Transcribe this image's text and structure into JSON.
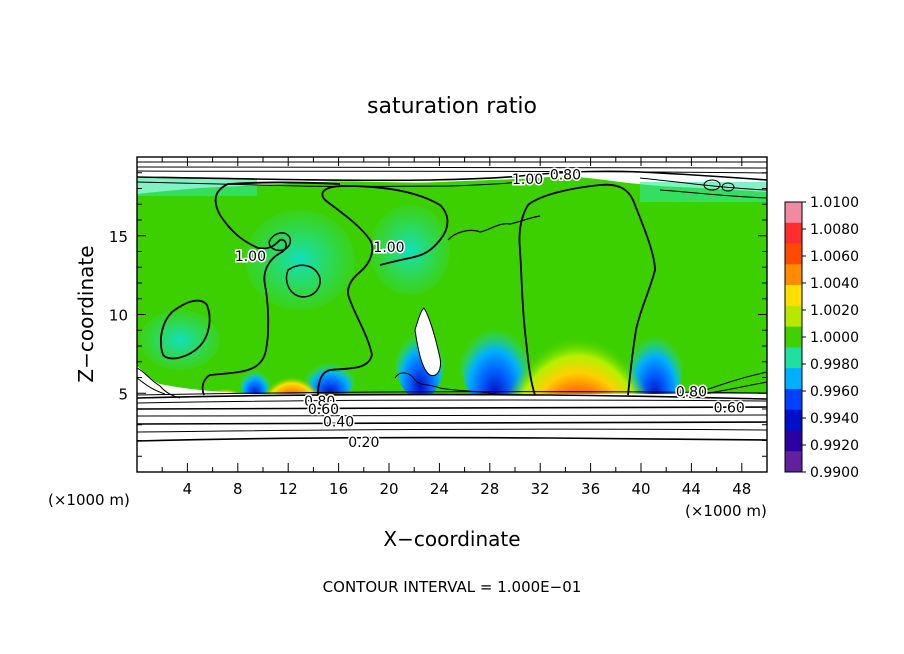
{
  "chart_data": {
    "type": "heatmap",
    "title": "saturation ratio",
    "xlabel": "X−coordinate",
    "ylabel": "Z−coordinate",
    "x_unit_left": "(×1000 m)",
    "x_unit_right": "(×1000 m)",
    "footer": "CONTOUR INTERVAL = 1.000E−01",
    "xlim": [
      0,
      50
    ],
    "ylim": [
      0,
      20
    ],
    "x_ticks": [
      4,
      8,
      12,
      16,
      20,
      24,
      28,
      32,
      36,
      40,
      44,
      48
    ],
    "y_ticks": [
      5,
      10,
      15
    ],
    "colorbar": {
      "range": [
        0.99,
        1.01
      ],
      "labels": [
        "1.0100",
        "1.0080",
        "1.0060",
        "1.0040",
        "1.0020",
        "1.0000",
        "0.9980",
        "0.9960",
        "0.9940",
        "0.9920",
        "0.9900"
      ]
    },
    "contour_labels": [
      {
        "text": "1.00",
        "x": 31,
        "z": 18.6
      },
      {
        "text": "0.80",
        "x": 34,
        "z": 18.9
      },
      {
        "text": "1.00",
        "x": 9,
        "z": 13.7
      },
      {
        "text": "1.00",
        "x": 20,
        "z": 14.3
      },
      {
        "text": "0.80",
        "x": 14.5,
        "z": 4.5
      },
      {
        "text": "0.60",
        "x": 14.8,
        "z": 4.0
      },
      {
        "text": "0.40",
        "x": 16,
        "z": 3.2
      },
      {
        "text": "0.20",
        "x": 18,
        "z": 1.9
      },
      {
        "text": "0.80",
        "x": 44,
        "z": 5.1
      },
      {
        "text": "0.60",
        "x": 47,
        "z": 4.1
      }
    ]
  }
}
